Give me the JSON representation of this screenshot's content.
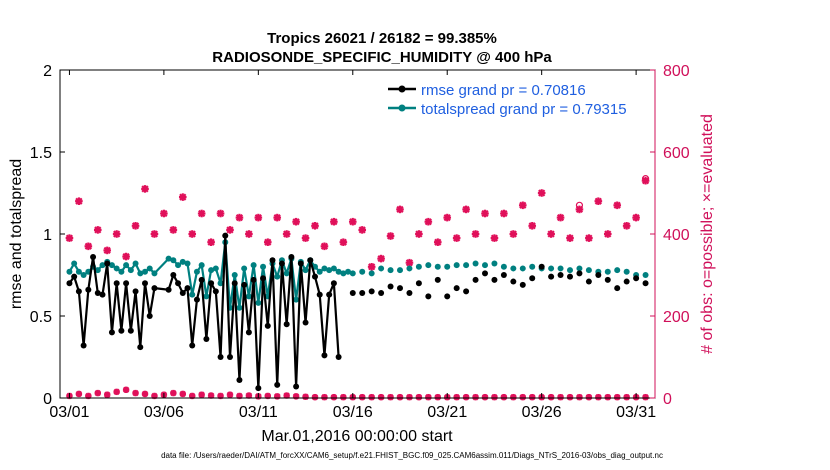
{
  "chart_data": {
    "type": "line",
    "title_line1": "Tropics 26021 / 26182 = 99.385%",
    "title_line2": "RADIOSONDE_SPECIFIC_HUMIDITY @ 400 hPa",
    "xlabel": "Mar.01,2016 00:00:00 start",
    "ylabel_left": "rmse and totalspread",
    "ylabel_right": "# of obs: o=possible; ×=evaluated",
    "footer": "data file: /Users/raeder/DAI/ATM_forcXX/CAM6_setup/f.e21.FHIST_BGC.f09_025.CAM6assim.011/Diags_NTrS_2016-03/obs_diag_output.nc",
    "xlim": [
      0.5,
      32.0
    ],
    "ylim_left": [
      0,
      2
    ],
    "ylim_right": [
      0,
      800
    ],
    "x_ticks": [
      1,
      6,
      11,
      16,
      21,
      26,
      31
    ],
    "x_tick_labels": [
      "03/01",
      "03/06",
      "03/11",
      "03/16",
      "03/21",
      "03/26",
      "03/31"
    ],
    "y_left_ticks": [
      0,
      0.5,
      1,
      1.5,
      2
    ],
    "y_left_tick_labels": [
      "0",
      "0.5",
      "1",
      "1.5",
      "2"
    ],
    "y_right_ticks": [
      0,
      200,
      400,
      600,
      800
    ],
    "y_right_tick_labels": [
      "0",
      "200",
      "400",
      "600",
      "800"
    ],
    "colors": {
      "rmse": "#000000",
      "totalspread": "#008080",
      "obs": "#e0105a",
      "legend_text": "#1f5fe0",
      "right_axis": "#d0105a"
    },
    "series": [
      {
        "name": "rmse",
        "legend": "rmse grand pr = 0.70816",
        "x": [
          1.0,
          1.25,
          1.5,
          1.75,
          2.0,
          2.25,
          2.5,
          2.75,
          3.0,
          3.25,
          3.5,
          3.75,
          4.0,
          4.25,
          4.5,
          4.75,
          5.0,
          5.25,
          5.5,
          6.25,
          6.5,
          6.75,
          7.0,
          7.25,
          7.5,
          7.75,
          8.0,
          8.25,
          8.5,
          8.75,
          9.0,
          9.25,
          9.5,
          9.75,
          10.0,
          10.25,
          10.5,
          10.75,
          11.0,
          11.25,
          11.5,
          11.75,
          12.0,
          12.25,
          12.5,
          12.75,
          13.0,
          13.25,
          13.5,
          13.75,
          14.0,
          14.25,
          14.5,
          14.75,
          15.0,
          15.25
        ],
        "y": [
          0.7,
          0.74,
          0.65,
          0.32,
          0.66,
          0.86,
          0.64,
          0.63,
          0.82,
          0.4,
          0.7,
          0.41,
          0.7,
          0.41,
          0.65,
          0.31,
          0.7,
          0.5,
          0.67,
          0.66,
          0.75,
          0.7,
          0.64,
          0.67,
          0.32,
          0.6,
          0.72,
          0.36,
          0.7,
          0.65,
          0.25,
          0.99,
          0.25,
          0.7,
          0.11,
          0.69,
          0.4,
          0.72,
          0.06,
          0.73,
          0.44,
          0.84,
          0.08,
          0.82,
          0.45,
          0.86,
          0.07,
          0.82,
          0.46,
          0.84,
          0.74,
          0.63,
          0.26,
          0.63,
          0.7,
          0.25
        ],
        "x2": [
          16.0,
          16.5,
          17.0,
          17.5,
          18.0,
          18.5,
          19.0,
          19.5,
          20.0,
          20.5,
          21.0,
          21.5,
          22.0,
          22.5,
          23.0,
          23.5,
          24.0,
          24.5,
          25.0,
          25.5,
          26.0,
          26.5,
          27.0,
          27.5,
          28.0,
          28.5,
          29.0,
          29.5,
          30.0,
          30.5,
          31.0,
          31.5
        ],
        "y2": [
          0.64,
          0.64,
          0.65,
          0.64,
          0.68,
          0.67,
          0.64,
          0.7,
          0.62,
          0.72,
          0.62,
          0.67,
          0.65,
          0.72,
          0.76,
          0.72,
          0.75,
          0.71,
          0.69,
          0.73,
          0.8,
          0.74,
          0.75,
          0.74,
          0.76,
          0.71,
          0.75,
          0.72,
          0.67,
          0.71,
          0.73,
          0.7
        ]
      },
      {
        "name": "totalspread",
        "legend": "totalspread grand pr = 0.79315",
        "x": [
          1.0,
          1.25,
          1.5,
          1.75,
          2.0,
          2.25,
          2.5,
          2.75,
          3.0,
          3.25,
          3.5,
          3.75,
          4.0,
          4.25,
          4.5,
          4.75,
          5.0,
          5.25,
          5.5,
          6.25,
          6.5,
          6.75,
          7.0,
          7.25,
          7.5,
          7.75,
          8.0,
          8.25,
          8.5,
          8.75,
          9.0,
          9.25,
          9.5,
          9.75,
          10.0,
          10.25,
          10.5,
          10.75,
          11.0,
          11.25,
          11.5,
          11.75,
          12.0,
          12.25,
          12.5,
          12.75,
          13.0,
          13.25,
          13.5,
          13.75,
          14.0,
          14.25,
          14.5,
          14.75,
          15.0,
          15.25,
          15.5,
          15.75
        ],
        "y": [
          0.77,
          0.82,
          0.77,
          0.75,
          0.77,
          0.8,
          0.78,
          0.81,
          0.83,
          0.81,
          0.79,
          0.77,
          0.81,
          0.78,
          0.82,
          0.76,
          0.77,
          0.79,
          0.76,
          0.85,
          0.84,
          0.81,
          0.83,
          0.82,
          0.63,
          0.77,
          0.81,
          0.62,
          0.78,
          0.79,
          0.7,
          0.95,
          0.55,
          0.75,
          0.55,
          0.79,
          0.62,
          0.81,
          0.58,
          0.8,
          0.62,
          0.82,
          0.74,
          0.84,
          0.76,
          0.85,
          0.6,
          0.83,
          0.78,
          0.84,
          0.8,
          0.77,
          0.79,
          0.78,
          0.79,
          0.77,
          0.76,
          0.77
        ],
        "x2": [
          16.0,
          16.5,
          17.0,
          17.5,
          18.0,
          18.5,
          19.0,
          19.5,
          20.0,
          20.5,
          21.0,
          21.5,
          22.0,
          22.5,
          23.0,
          23.5,
          24.0,
          24.5,
          25.0,
          25.5,
          26.0,
          26.5,
          27.0,
          27.5,
          28.0,
          28.5,
          29.0,
          29.5,
          30.0,
          30.5,
          31.0,
          31.5
        ],
        "y2": [
          0.76,
          0.77,
          0.76,
          0.79,
          0.78,
          0.78,
          0.79,
          0.8,
          0.81,
          0.8,
          0.8,
          0.81,
          0.81,
          0.82,
          0.81,
          0.82,
          0.8,
          0.79,
          0.79,
          0.8,
          0.79,
          0.79,
          0.79,
          0.78,
          0.79,
          0.78,
          0.77,
          0.77,
          0.78,
          0.77,
          0.75,
          0.75
        ]
      }
    ],
    "obs_evaluated": {
      "x": [
        1.0,
        1.5,
        2.0,
        2.5,
        3.0,
        3.5,
        4.0,
        4.5,
        5.0,
        5.5,
        6.0,
        6.5,
        7.0,
        7.5,
        8.0,
        8.5,
        9.0,
        9.5,
        10.0,
        10.5,
        11.0,
        11.5,
        12.0,
        12.5,
        13.0,
        13.5,
        14.0,
        14.5,
        15.0,
        15.5,
        16.0,
        16.5,
        17.0,
        17.5,
        18.0,
        18.5,
        19.0,
        19.5,
        20.0,
        20.5,
        21.0,
        21.5,
        22.0,
        22.5,
        23.0,
        23.5,
        24.0,
        24.5,
        25.0,
        25.5,
        26.0,
        26.5,
        27.0,
        27.5,
        28.0,
        28.5,
        29.0,
        29.5,
        30.0,
        30.5,
        31.0,
        31.5
      ],
      "y": [
        390,
        480,
        370,
        410,
        360,
        400,
        345,
        420,
        510,
        400,
        450,
        410,
        490,
        400,
        450,
        380,
        450,
        410,
        440,
        400,
        440,
        380,
        440,
        400,
        430,
        390,
        420,
        370,
        430,
        380,
        430,
        410,
        320,
        340,
        395,
        460,
        330,
        400,
        430,
        380,
        440,
        390,
        460,
        400,
        450,
        390,
        450,
        400,
        470,
        420,
        500,
        400,
        440,
        390,
        460,
        390,
        480,
        400,
        470,
        420,
        440,
        530
      ]
    },
    "obs_possible_markers": [
      [
        28.0,
        470
      ],
      [
        31.5,
        535
      ]
    ],
    "obs_low": {
      "x": [
        1.0,
        1.5,
        2.0,
        2.5,
        3.0,
        3.5,
        4.0,
        4.5,
        5.0,
        5.5,
        6.0,
        6.5,
        7.0,
        7.5,
        8.0,
        8.5,
        9.0,
        9.5,
        10.0,
        10.5,
        11.0,
        11.5,
        12.0,
        12.5,
        13.0,
        13.5,
        14.0,
        14.5,
        15.0,
        15.5,
        16.0,
        16.5,
        17.0,
        17.5,
        18.0,
        18.5,
        19.0,
        19.5,
        20.0,
        20.5,
        21.0,
        21.5,
        22.0,
        22.5,
        23.0,
        23.5,
        24.0,
        24.5,
        25.0,
        25.5,
        26.0,
        26.5,
        27.0,
        27.5,
        28.0,
        28.5,
        29.0,
        29.5,
        30.0,
        30.5,
        31.0,
        31.5
      ],
      "y": [
        5,
        10,
        5,
        12,
        8,
        15,
        20,
        12,
        10,
        5,
        8,
        12,
        10,
        5,
        8,
        6,
        5,
        8,
        5,
        6,
        4,
        5,
        4,
        6,
        4,
        3,
        2,
        2,
        2,
        2,
        2,
        2,
        2,
        2,
        2,
        2,
        2,
        2,
        2,
        2,
        2,
        2,
        2,
        2,
        2,
        2,
        2,
        2,
        2,
        2,
        2,
        2,
        2,
        2,
        2,
        2,
        2,
        2,
        2,
        2,
        2,
        2
      ]
    }
  }
}
